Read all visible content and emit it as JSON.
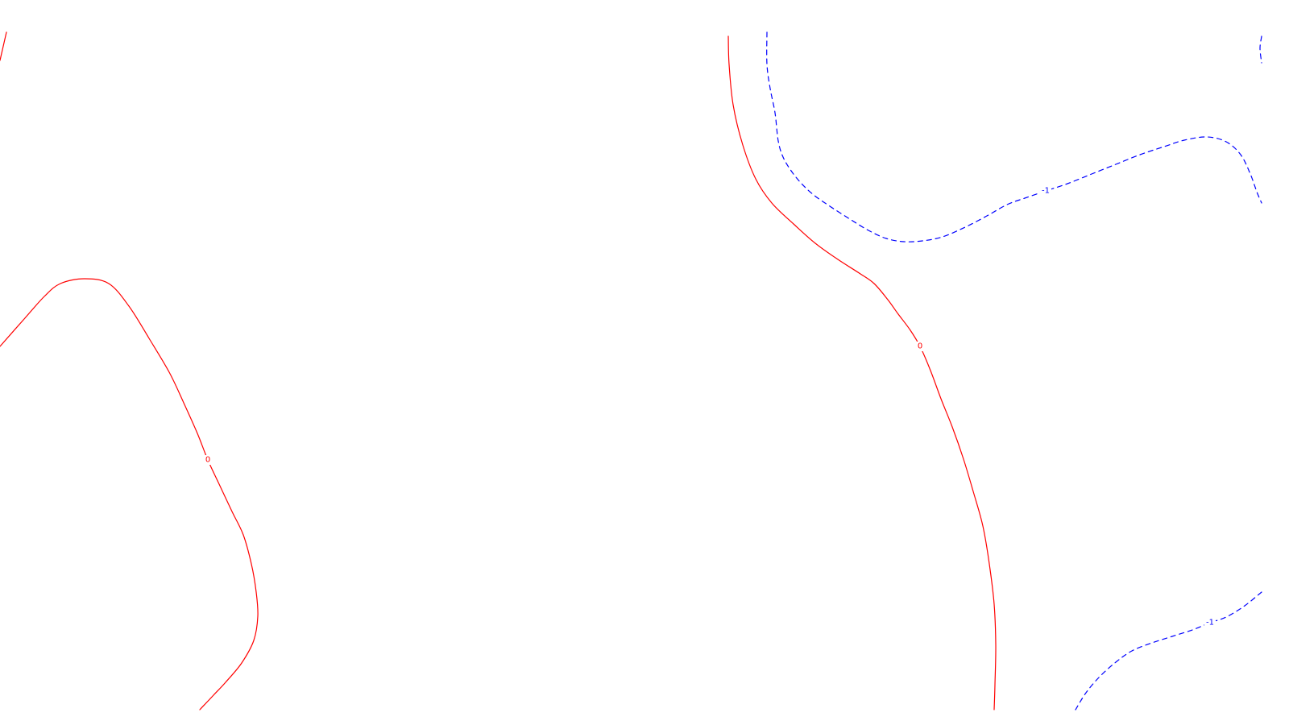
{
  "chart_data": {
    "type": "contour",
    "title": "",
    "xlabel": "",
    "ylabel": "",
    "grid": false,
    "legend": "none",
    "series": [
      {
        "level": 0,
        "label": "0",
        "color": "#ff0000",
        "dash": "solid",
        "paths": [
          [
            [
              0,
              75
            ],
            [
              8,
              40
            ]
          ],
          [
            [
              0,
              430
            ],
            [
              30,
              396
            ],
            [
              55,
              368
            ],
            [
              75,
              352
            ],
            [
              105,
              346
            ],
            [
              135,
              352
            ],
            [
              160,
              380
            ],
            [
              185,
              420
            ],
            [
              210,
              462
            ],
            [
              228,
              500
            ],
            [
              245,
              538
            ],
            [
              258,
              571
            ],
            [
              272,
              601
            ],
            [
              288,
              635
            ],
            [
              302,
              664
            ],
            [
              312,
              700
            ],
            [
              318,
              735
            ],
            [
              320,
              765
            ],
            [
              315,
              795
            ],
            [
              300,
              823
            ],
            [
              280,
              847
            ],
            [
              265,
              863
            ],
            [
              248,
              881
            ]
          ],
          [
            [
              904,
              45
            ],
            [
              905,
              80
            ],
            [
              910,
              130
            ],
            [
              922,
              180
            ],
            [
              938,
              222
            ],
            [
              958,
              252
            ],
            [
              985,
              278
            ],
            [
              1012,
              302
            ],
            [
              1040,
              322
            ],
            [
              1068,
              340
            ],
            [
              1085,
              352
            ],
            [
              1102,
              372
            ],
            [
              1115,
              390
            ],
            [
              1130,
              410
            ],
            [
              1142,
              430
            ],
            [
              1155,
              460
            ],
            [
              1168,
              495
            ],
            [
              1182,
              530
            ],
            [
              1196,
              570
            ],
            [
              1208,
              610
            ],
            [
              1220,
              653
            ],
            [
              1228,
              700
            ],
            [
              1234,
              750
            ],
            [
              1236,
              800
            ],
            [
              1235,
              850
            ],
            [
              1234,
              881
            ]
          ]
        ],
        "label_points": [
          [
            258,
            571
          ],
          [
            1142,
            430
          ]
        ]
      },
      {
        "level": -1,
        "label": "-1",
        "color": "#0000ff",
        "dash": "dashed",
        "paths": [
          [
            [
              952,
              40
            ],
            [
              952,
              80
            ],
            [
              956,
              110
            ],
            [
              962,
              140
            ],
            [
              966,
              175
            ],
            [
              972,
              195
            ],
            [
              982,
              212
            ],
            [
              995,
              228
            ],
            [
              1010,
              242
            ],
            [
              1030,
              256
            ],
            [
              1055,
              272
            ],
            [
              1078,
              286
            ],
            [
              1100,
              296
            ],
            [
              1122,
              300
            ],
            [
              1145,
              299
            ],
            [
              1170,
              294
            ],
            [
              1198,
              282
            ],
            [
              1225,
              268
            ],
            [
              1250,
              254
            ],
            [
              1272,
              246
            ],
            [
              1298,
              237
            ],
            [
              1325,
              228
            ],
            [
              1355,
              216
            ],
            [
              1385,
              204
            ],
            [
              1415,
              192
            ],
            [
              1445,
              182
            ],
            [
              1470,
              174
            ],
            [
              1498,
              170
            ],
            [
              1522,
              176
            ],
            [
              1540,
              192
            ],
            [
              1552,
              216
            ],
            [
              1560,
              238
            ],
            [
              1566,
              252
            ]
          ],
          [
            [
              1566,
              735
            ],
            [
              1545,
              752
            ],
            [
              1522,
              766
            ],
            [
              1502,
              773
            ],
            [
              1480,
              782
            ],
            [
              1455,
              790
            ],
            [
              1430,
              798
            ],
            [
              1405,
              808
            ],
            [
              1385,
              822
            ],
            [
              1365,
              840
            ],
            [
              1348,
              860
            ],
            [
              1335,
              881
            ]
          ],
          [
            [
              1566,
              45
            ],
            [
              1564,
              60
            ],
            [
              1566,
              78
            ]
          ]
        ],
        "label_points": [
          [
            1298,
            237
          ],
          [
            1502,
            773
          ]
        ]
      }
    ]
  }
}
